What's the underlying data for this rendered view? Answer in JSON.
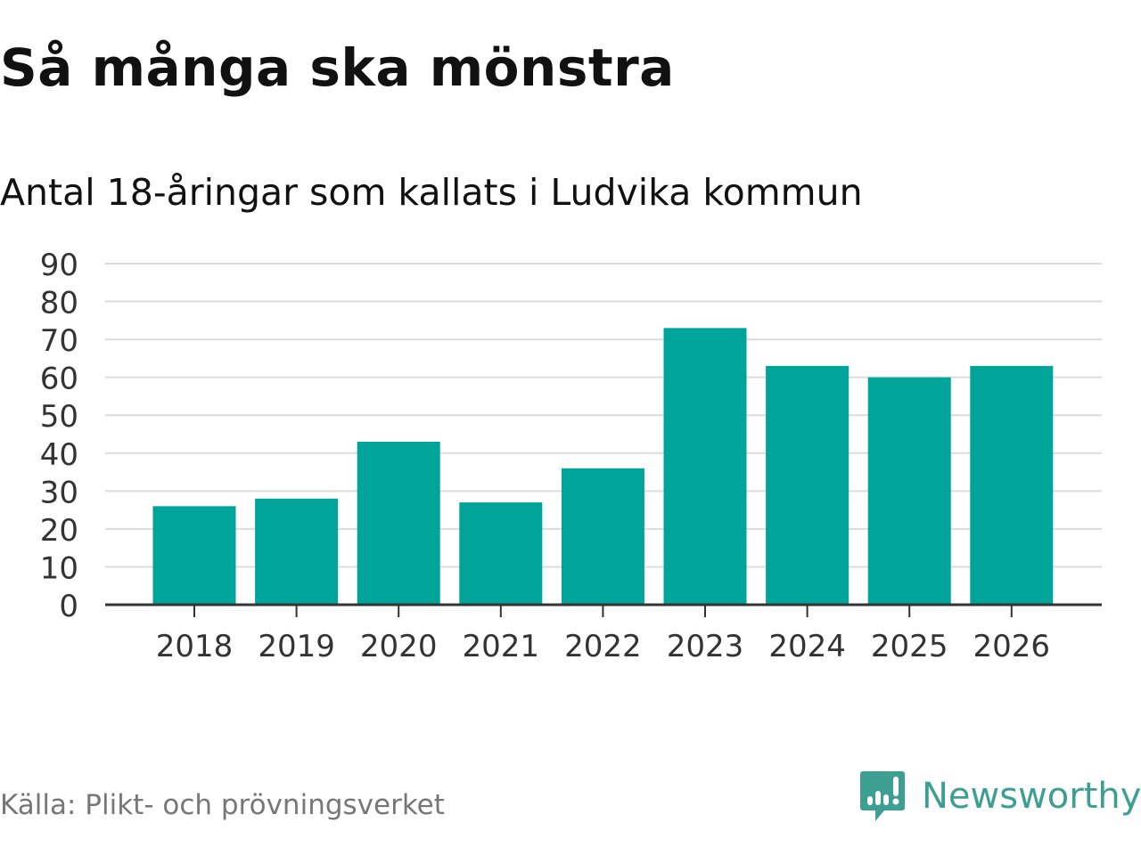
{
  "title": "Så många ska mönstra",
  "subtitle": "Antal 18-åringar som kallats i Ludvika kommun",
  "source": "Källa: Plikt- och prövningsverket",
  "logo": {
    "name": "Newsworthy",
    "color": "#3d9e92"
  },
  "chart_data": {
    "type": "bar",
    "title": "Antal 18-åringar som kallats i Ludvika kommun",
    "categories": [
      "2018",
      "2019",
      "2020",
      "2021",
      "2022",
      "2023",
      "2024",
      "2025",
      "2026"
    ],
    "values": [
      26,
      28,
      43,
      27,
      36,
      73,
      63,
      60,
      63
    ],
    "ylim": [
      0,
      90
    ],
    "yticks": [
      0,
      10,
      20,
      30,
      40,
      50,
      60,
      70,
      80,
      90
    ],
    "grid": true,
    "bar_color": "#00a499"
  }
}
